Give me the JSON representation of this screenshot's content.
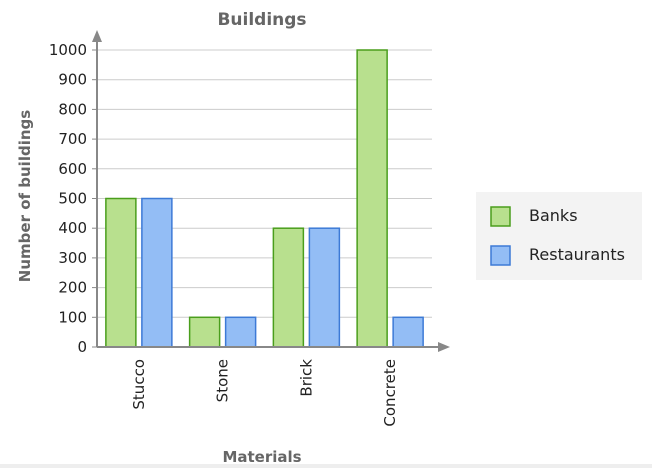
{
  "chart_data": {
    "type": "bar",
    "title": "Buildings",
    "xlabel": "Materials",
    "ylabel": "Number of buildings",
    "categories": [
      "Stucco",
      "Stone",
      "Brick",
      "Concrete"
    ],
    "series": [
      {
        "name": "Banks",
        "values": [
          500,
          100,
          400,
          1000
        ],
        "color": "#b8e08e",
        "stroke": "#4a9e1c"
      },
      {
        "name": "Restaurants",
        "values": [
          500,
          100,
          400,
          100
        ],
        "color": "#93bdf5",
        "stroke": "#3d7ad6"
      }
    ],
    "ylim": [
      0,
      1000
    ],
    "yticks": [
      "0",
      "100",
      "200",
      "300",
      "400",
      "500",
      "600",
      "700",
      "800",
      "900",
      "1000"
    ],
    "grid": true,
    "legend_position": "right",
    "colors": {
      "axis": "#888888",
      "grid": "#cccccc",
      "text": "#222222",
      "title": "#666666",
      "legend_bg": "#f3f3f3"
    }
  }
}
